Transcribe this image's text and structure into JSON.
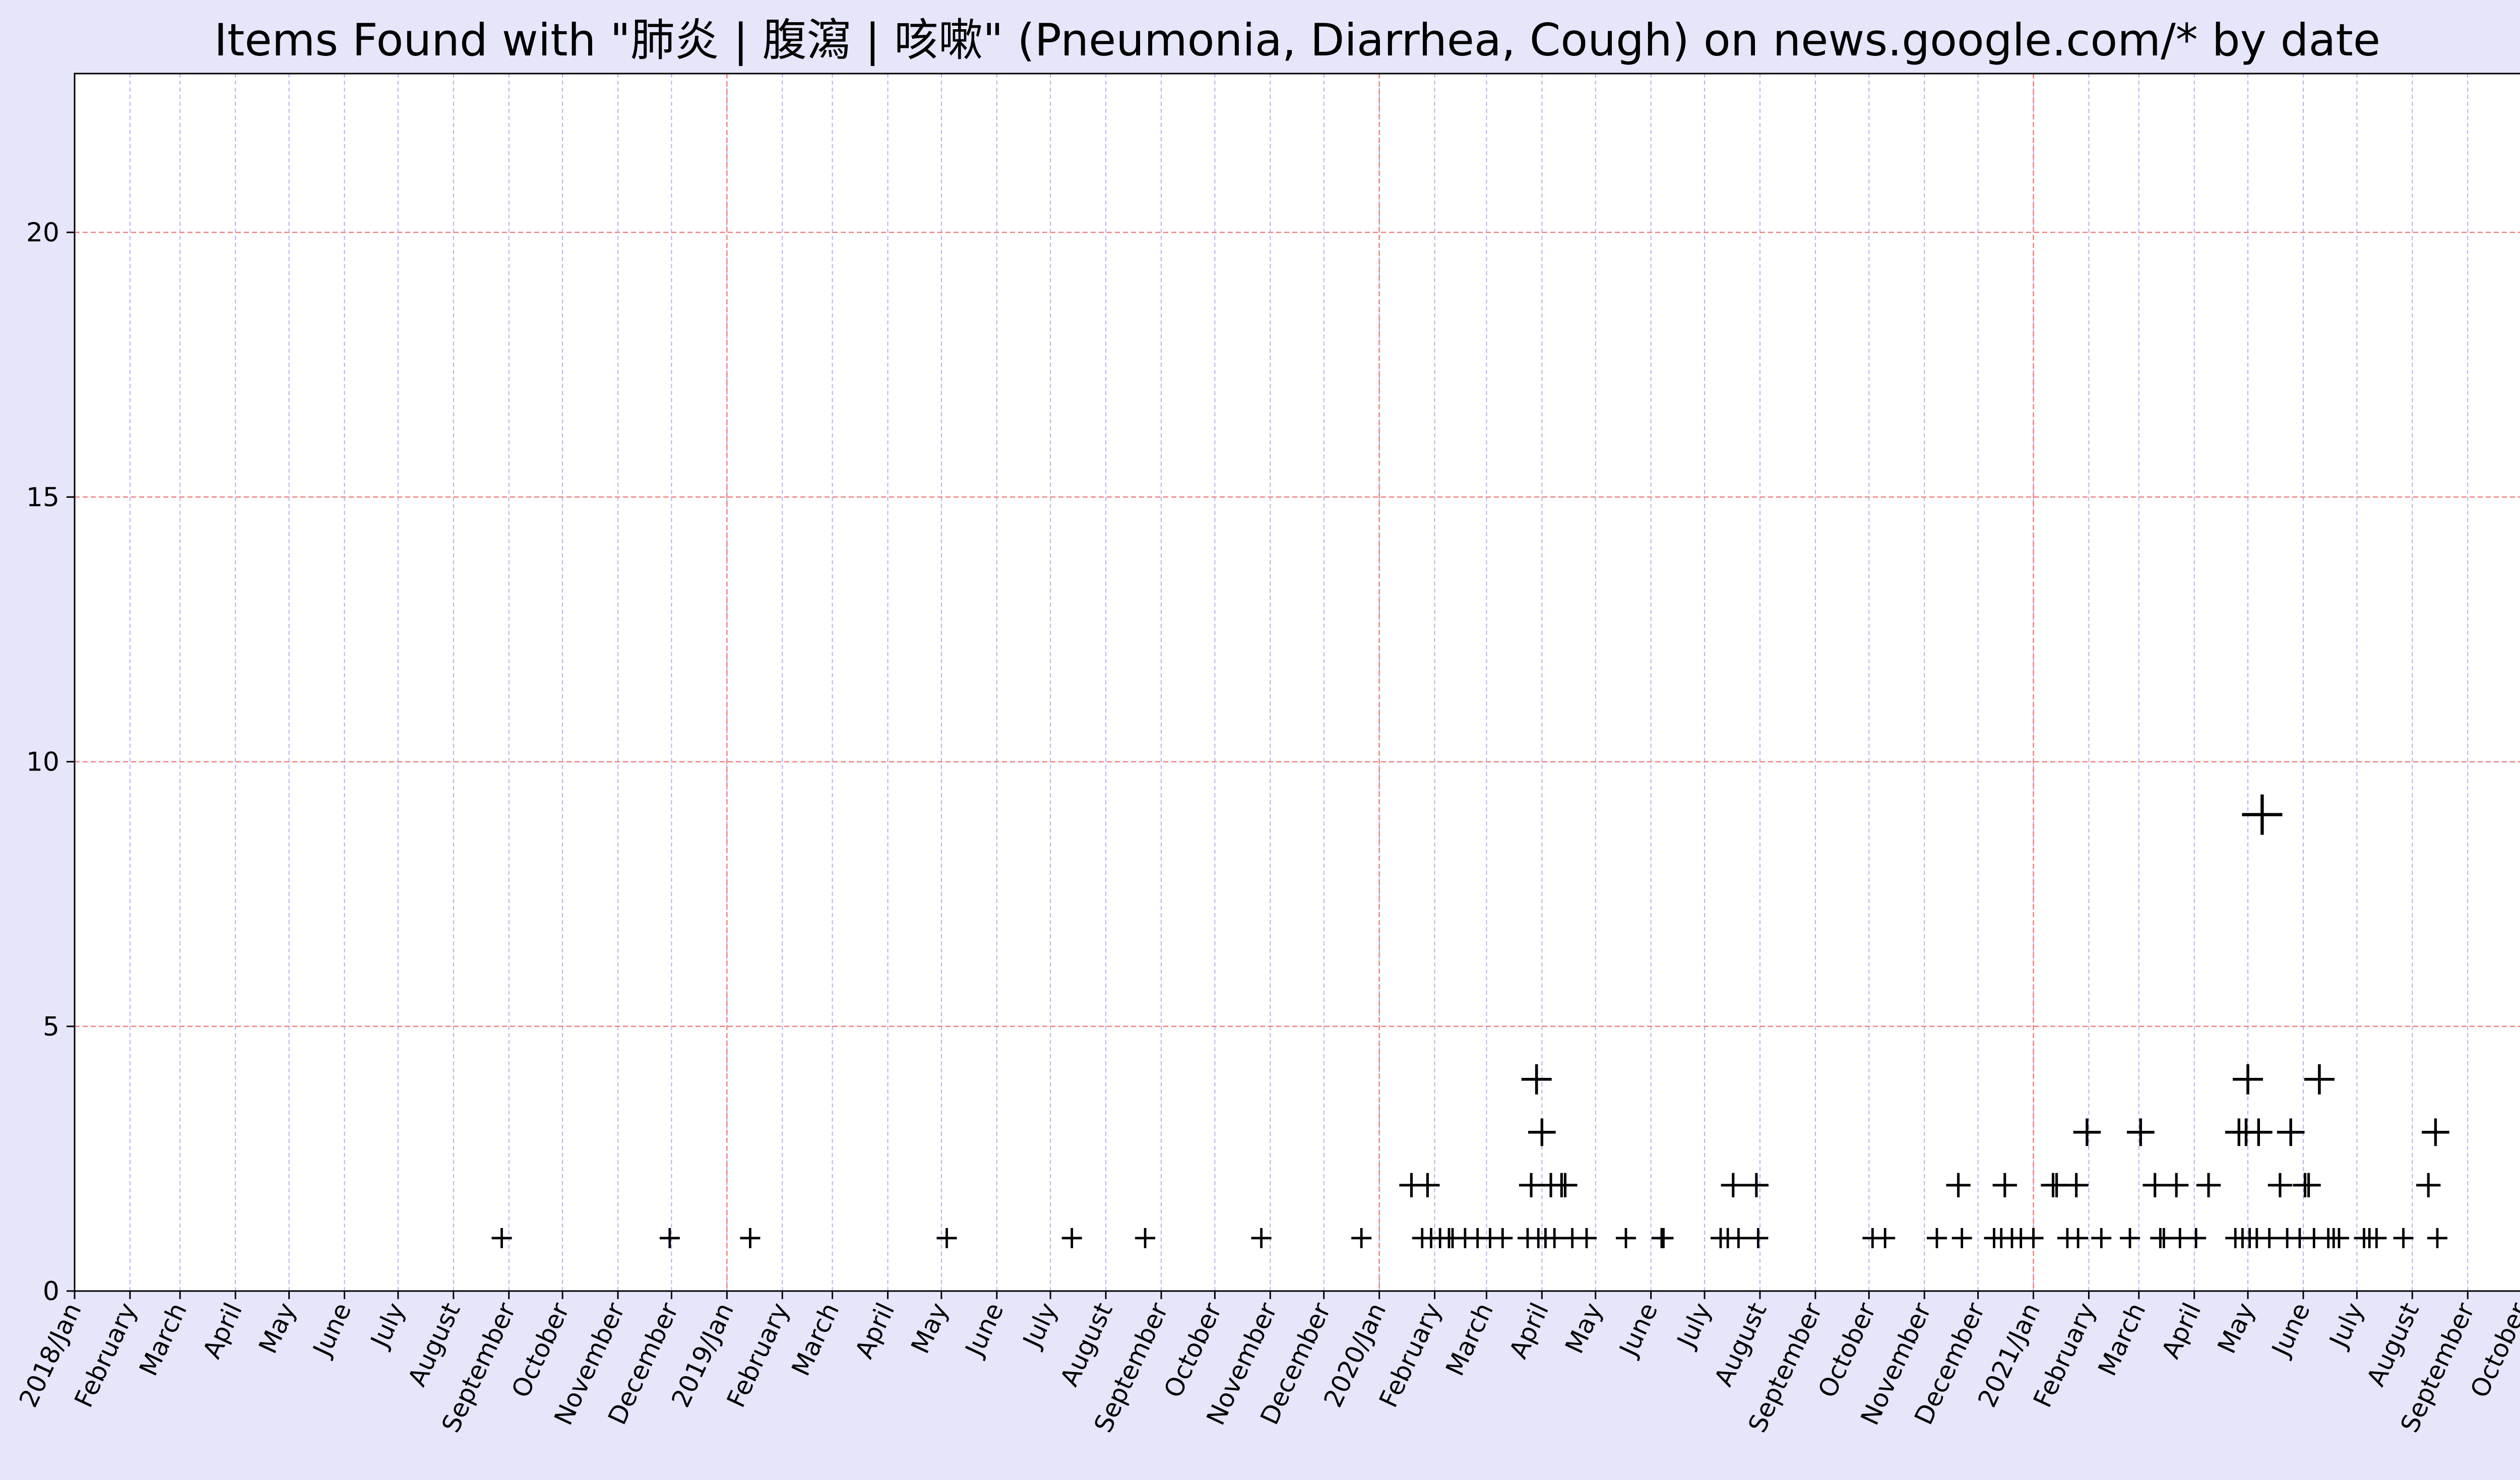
{
  "chart_data": {
    "type": "scatter",
    "title": "Items Found with  \"肺炎 | 腹瀉 | 咳嗽\" (Pneumonia, Diarrhea, Cough) on news.google.com/* by date",
    "xlabel": "",
    "ylabel": "",
    "xlim": [
      "2018-01-01",
      "2021-10-31"
    ],
    "ylim": [
      0,
      23
    ],
    "yticks": [
      0,
      5,
      10,
      15,
      20
    ],
    "xticks": [
      {
        "date": "2018-01-01",
        "label": "2018/Jan"
      },
      {
        "date": "2018-02-01",
        "label": "February"
      },
      {
        "date": "2018-03-01",
        "label": "March"
      },
      {
        "date": "2018-04-01",
        "label": "April"
      },
      {
        "date": "2018-05-01",
        "label": "May"
      },
      {
        "date": "2018-06-01",
        "label": "June"
      },
      {
        "date": "2018-07-01",
        "label": "July"
      },
      {
        "date": "2018-08-01",
        "label": "August"
      },
      {
        "date": "2018-09-01",
        "label": "September"
      },
      {
        "date": "2018-10-01",
        "label": "October"
      },
      {
        "date": "2018-11-01",
        "label": "November"
      },
      {
        "date": "2018-12-01",
        "label": "December"
      },
      {
        "date": "2019-01-01",
        "label": "2019/Jan"
      },
      {
        "date": "2019-02-01",
        "label": "February"
      },
      {
        "date": "2019-03-01",
        "label": "March"
      },
      {
        "date": "2019-04-01",
        "label": "April"
      },
      {
        "date": "2019-05-01",
        "label": "May"
      },
      {
        "date": "2019-06-01",
        "label": "June"
      },
      {
        "date": "2019-07-01",
        "label": "July"
      },
      {
        "date": "2019-08-01",
        "label": "August"
      },
      {
        "date": "2019-09-01",
        "label": "September"
      },
      {
        "date": "2019-10-01",
        "label": "October"
      },
      {
        "date": "2019-11-01",
        "label": "November"
      },
      {
        "date": "2019-12-01",
        "label": "December"
      },
      {
        "date": "2020-01-01",
        "label": "2020/Jan"
      },
      {
        "date": "2020-02-01",
        "label": "February"
      },
      {
        "date": "2020-03-01",
        "label": "March"
      },
      {
        "date": "2020-04-01",
        "label": "April"
      },
      {
        "date": "2020-05-01",
        "label": "May"
      },
      {
        "date": "2020-06-01",
        "label": "June"
      },
      {
        "date": "2020-07-01",
        "label": "July"
      },
      {
        "date": "2020-08-01",
        "label": "August"
      },
      {
        "date": "2020-09-01",
        "label": "September"
      },
      {
        "date": "2020-10-01",
        "label": "October"
      },
      {
        "date": "2020-11-01",
        "label": "November"
      },
      {
        "date": "2020-12-01",
        "label": "December"
      },
      {
        "date": "2021-01-01",
        "label": "2021/Jan"
      },
      {
        "date": "2021-02-01",
        "label": "February"
      },
      {
        "date": "2021-03-01",
        "label": "March"
      },
      {
        "date": "2021-04-01",
        "label": "April"
      },
      {
        "date": "2021-05-01",
        "label": "May"
      },
      {
        "date": "2021-06-01",
        "label": "June"
      },
      {
        "date": "2021-07-01",
        "label": "July"
      },
      {
        "date": "2021-08-01",
        "label": "August"
      },
      {
        "date": "2021-09-01",
        "label": "September"
      },
      {
        "date": "2021-10-01",
        "label": "October"
      }
    ],
    "year_gridlines": [
      "2019-01-01",
      "2020-01-01",
      "2021-01-01"
    ],
    "grid": true,
    "legend": "none",
    "marker": "+",
    "marker_size_scales_with_value": true,
    "colors": {
      "figure_background": "#e6e6fa",
      "plot_background": "#ffffff",
      "month_grid": "#b0b0f0",
      "year_grid": "#f08080",
      "marker": "#000000"
    },
    "points": [
      {
        "x": "2018-08-28",
        "y": 1
      },
      {
        "x": "2018-11-30",
        "y": 1
      },
      {
        "x": "2019-01-14",
        "y": 1
      },
      {
        "x": "2019-05-04",
        "y": 1
      },
      {
        "x": "2019-07-13",
        "y": 1
      },
      {
        "x": "2019-08-23",
        "y": 1
      },
      {
        "x": "2019-10-27",
        "y": 1
      },
      {
        "x": "2019-12-22",
        "y": 1
      },
      {
        "x": "2020-01-19",
        "y": 2
      },
      {
        "x": "2020-01-25",
        "y": 1
      },
      {
        "x": "2020-01-28",
        "y": 2
      },
      {
        "x": "2020-01-30",
        "y": 1
      },
      {
        "x": "2020-02-04",
        "y": 1
      },
      {
        "x": "2020-02-09",
        "y": 1
      },
      {
        "x": "2020-02-11",
        "y": 1
      },
      {
        "x": "2020-02-18",
        "y": 1
      },
      {
        "x": "2020-02-25",
        "y": 1
      },
      {
        "x": "2020-03-03",
        "y": 1
      },
      {
        "x": "2020-03-10",
        "y": 1
      },
      {
        "x": "2020-03-24",
        "y": 1
      },
      {
        "x": "2020-03-26",
        "y": 2
      },
      {
        "x": "2020-03-29",
        "y": 4
      },
      {
        "x": "2020-03-30",
        "y": 1
      },
      {
        "x": "2020-04-01",
        "y": 3
      },
      {
        "x": "2020-04-03",
        "y": 1
      },
      {
        "x": "2020-04-06",
        "y": 2
      },
      {
        "x": "2020-04-08",
        "y": 1
      },
      {
        "x": "2020-04-12",
        "y": 2
      },
      {
        "x": "2020-04-14",
        "y": 2
      },
      {
        "x": "2020-04-18",
        "y": 1
      },
      {
        "x": "2020-04-26",
        "y": 1
      },
      {
        "x": "2020-05-18",
        "y": 1
      },
      {
        "x": "2020-06-07",
        "y": 1
      },
      {
        "x": "2020-06-08",
        "y": 1
      },
      {
        "x": "2020-07-10",
        "y": 1
      },
      {
        "x": "2020-07-14",
        "y": 1
      },
      {
        "x": "2020-07-17",
        "y": 2
      },
      {
        "x": "2020-07-20",
        "y": 1
      },
      {
        "x": "2020-07-30",
        "y": 2
      },
      {
        "x": "2020-07-31",
        "y": 1
      },
      {
        "x": "2020-10-03",
        "y": 1
      },
      {
        "x": "2020-10-10",
        "y": 1
      },
      {
        "x": "2020-11-08",
        "y": 1
      },
      {
        "x": "2020-11-20",
        "y": 2
      },
      {
        "x": "2020-11-22",
        "y": 1
      },
      {
        "x": "2020-12-10",
        "y": 1
      },
      {
        "x": "2020-12-14",
        "y": 1
      },
      {
        "x": "2020-12-16",
        "y": 2
      },
      {
        "x": "2020-12-20",
        "y": 1
      },
      {
        "x": "2020-12-25",
        "y": 1
      },
      {
        "x": "2021-01-01",
        "y": 1
      },
      {
        "x": "2021-01-12",
        "y": 2
      },
      {
        "x": "2021-01-14",
        "y": 2
      },
      {
        "x": "2021-01-20",
        "y": 1
      },
      {
        "x": "2021-01-25",
        "y": 2
      },
      {
        "x": "2021-01-26",
        "y": 1
      },
      {
        "x": "2021-01-31",
        "y": 3
      },
      {
        "x": "2021-02-08",
        "y": 1
      },
      {
        "x": "2021-02-24",
        "y": 1
      },
      {
        "x": "2021-03-02",
        "y": 3
      },
      {
        "x": "2021-03-10",
        "y": 2
      },
      {
        "x": "2021-03-13",
        "y": 1
      },
      {
        "x": "2021-03-15",
        "y": 1
      },
      {
        "x": "2021-03-22",
        "y": 2
      },
      {
        "x": "2021-03-24",
        "y": 1
      },
      {
        "x": "2021-04-02",
        "y": 1
      },
      {
        "x": "2021-04-09",
        "y": 2
      },
      {
        "x": "2021-04-24",
        "y": 1
      },
      {
        "x": "2021-04-26",
        "y": 3
      },
      {
        "x": "2021-04-28",
        "y": 1
      },
      {
        "x": "2021-04-30",
        "y": 3
      },
      {
        "x": "2021-05-01",
        "y": 4
      },
      {
        "x": "2021-05-02",
        "y": 1
      },
      {
        "x": "2021-05-06",
        "y": 1
      },
      {
        "x": "2021-05-07",
        "y": 3
      },
      {
        "x": "2021-05-09",
        "y": 9
      },
      {
        "x": "2021-05-13",
        "y": 1
      },
      {
        "x": "2021-05-19",
        "y": 2
      },
      {
        "x": "2021-05-23",
        "y": 1
      },
      {
        "x": "2021-05-25",
        "y": 3
      },
      {
        "x": "2021-05-30",
        "y": 1
      },
      {
        "x": "2021-06-02",
        "y": 2
      },
      {
        "x": "2021-06-04",
        "y": 2
      },
      {
        "x": "2021-06-07",
        "y": 1
      },
      {
        "x": "2021-06-10",
        "y": 4
      },
      {
        "x": "2021-06-15",
        "y": 1
      },
      {
        "x": "2021-06-18",
        "y": 1
      },
      {
        "x": "2021-06-21",
        "y": 1
      },
      {
        "x": "2021-07-05",
        "y": 1
      },
      {
        "x": "2021-07-08",
        "y": 1
      },
      {
        "x": "2021-07-12",
        "y": 1
      },
      {
        "x": "2021-07-27",
        "y": 1
      },
      {
        "x": "2021-08-10",
        "y": 2
      },
      {
        "x": "2021-08-14",
        "y": 3
      },
      {
        "x": "2021-08-15",
        "y": 1
      }
    ]
  }
}
